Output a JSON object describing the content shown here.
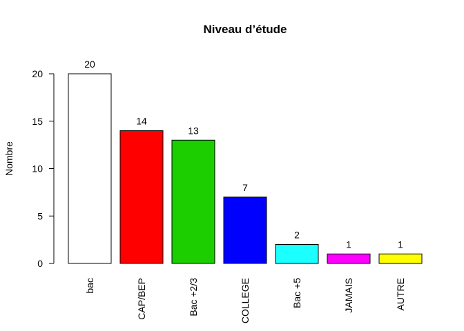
{
  "chart_data": {
    "type": "bar",
    "title": "Niveau d’étude",
    "xlabel": "",
    "ylabel": "Nombre",
    "categories": [
      "bac",
      "CAP/BEP",
      "Bac +2/3",
      "COLLEGE",
      "Bac +5",
      "JAMAIS",
      "AUTRE"
    ],
    "values": [
      20,
      14,
      13,
      7,
      2,
      1,
      1
    ],
    "colors": [
      "#FFFFFF",
      "#FF0000",
      "#1CCD00",
      "#0000FF",
      "#1CFFFF",
      "#FF00FF",
      "#FFFF00"
    ],
    "ylim": [
      0,
      20
    ],
    "yticks": [
      0,
      5,
      10,
      15,
      20
    ],
    "data_labels": [
      "20",
      "14",
      "13",
      "7",
      "2",
      "1",
      "1"
    ],
    "grid": false,
    "legend": "none"
  }
}
